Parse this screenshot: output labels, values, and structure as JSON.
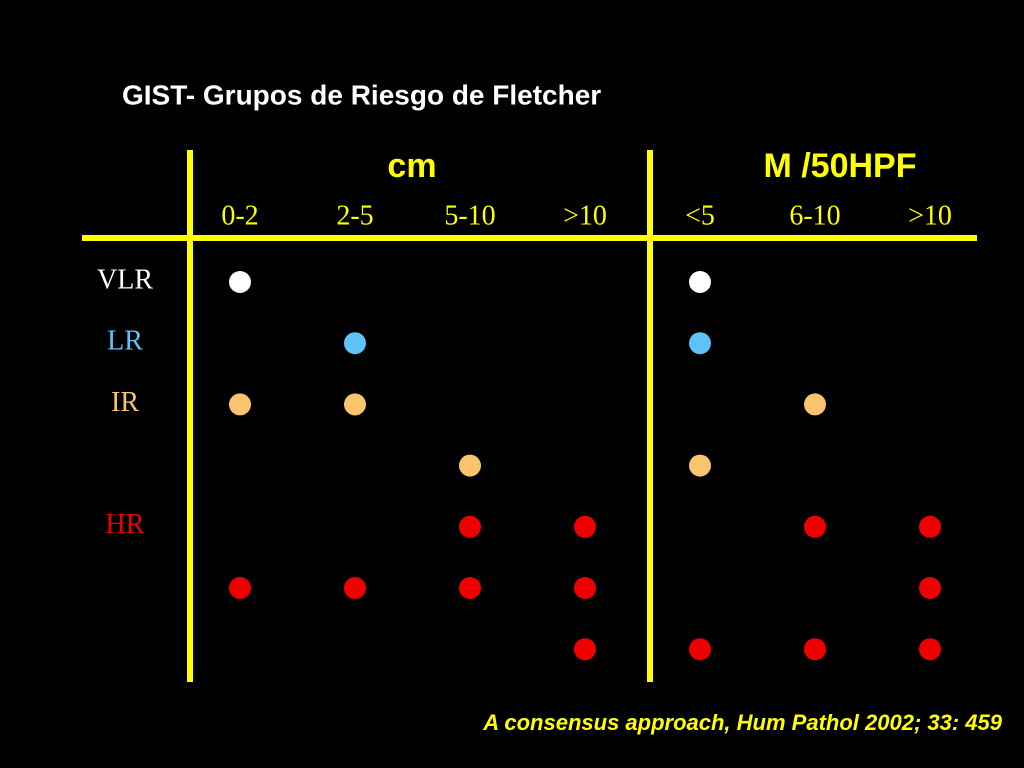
{
  "header": {
    "title": "GIST- Grupos de Riesgo de Fletcher"
  },
  "table": {
    "groups": [
      "cm",
      "M /50HPF"
    ],
    "columns": [
      "0-2",
      "2-5",
      "5-10",
      ">10",
      "<5",
      "6-10",
      ">10"
    ],
    "rows": [
      {
        "label": "VLR",
        "color": "#ffffff",
        "marks": [
          true,
          false,
          false,
          false,
          true,
          false,
          false
        ]
      },
      {
        "label": "LR",
        "color": "#5ec4f7",
        "marks": [
          false,
          true,
          false,
          false,
          true,
          false,
          false
        ]
      },
      {
        "label": "IR",
        "color": "#f9c46c",
        "marks": [
          true,
          true,
          false,
          false,
          false,
          true,
          false
        ]
      },
      {
        "color": "#f9c46c",
        "marks": [
          false,
          false,
          true,
          false,
          true,
          false,
          false
        ]
      },
      {
        "label": "HR",
        "color": "#ee0000",
        "marks": [
          false,
          false,
          true,
          true,
          false,
          true,
          true
        ]
      },
      {
        "color": "#ee0000",
        "marks": [
          true,
          true,
          true,
          true,
          false,
          false,
          true
        ]
      },
      {
        "color": "#ee0000",
        "marks": [
          false,
          false,
          false,
          true,
          true,
          true,
          true
        ]
      }
    ]
  },
  "footer": {
    "citation": "A consensus approach, Hum Pathol 2002; 33: 459"
  }
}
